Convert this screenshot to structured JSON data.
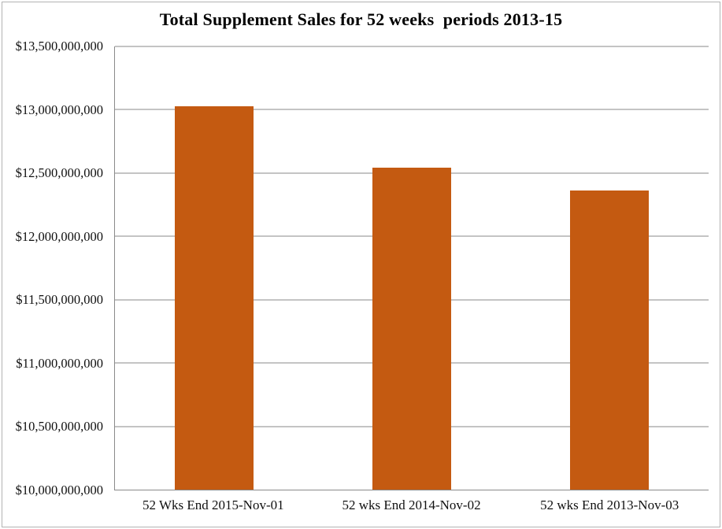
{
  "chart_title": "Total Supplement Sales for 52 weeks  periods 2013-15",
  "accent_color": "#c45a11",
  "gridline_color": "#8a8a8a",
  "border_color": "#b3b3b3",
  "chart_data": {
    "type": "bar",
    "title": "Total Supplement Sales for 52 weeks  periods 2013-15",
    "categories": [
      "52 Wks End 2015-Nov-01",
      "52 wks End 2014-Nov-02",
      "52 wks End 2013-Nov-03"
    ],
    "values": [
      13030000000,
      12540000000,
      12360000000
    ],
    "bar_color": "#c45a11",
    "xlabel": "",
    "ylabel": "",
    "ylim": [
      10000000000,
      13500000000
    ],
    "y_tick_step": 500000000,
    "grid": true,
    "legend": false,
    "y_tick_labels": [
      "$13,500,000,000",
      "$13,000,000,000",
      "$12,500,000,000",
      "$12,000,000,000",
      "$11,500,000,000",
      "$11,000,000,000",
      "$10,500,000,000",
      "$10,000,000,000"
    ]
  }
}
